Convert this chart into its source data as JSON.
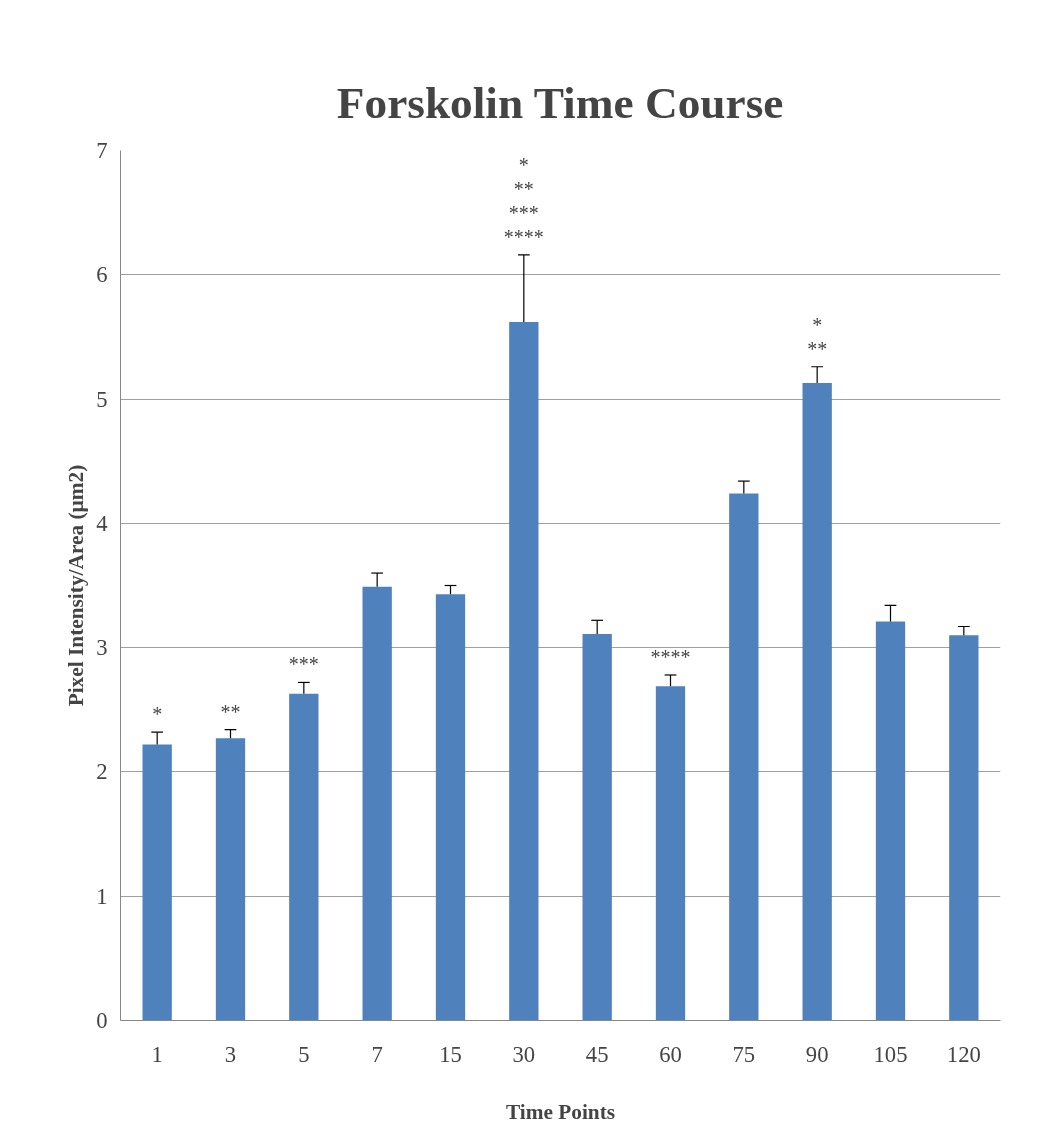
{
  "chart_data": {
    "type": "bar",
    "title": "Forskolin Time Course",
    "xlabel": "Time Points",
    "ylabel": "Pixel Intensity/Area (µm2)",
    "categories": [
      "1",
      "3",
      "5",
      "7",
      "15",
      "30",
      "45",
      "60",
      "75",
      "90",
      "105",
      "120"
    ],
    "values": [
      2.22,
      2.27,
      2.63,
      3.49,
      3.43,
      5.62,
      3.11,
      2.69,
      4.24,
      5.13,
      3.21,
      3.1
    ],
    "errors": [
      [
        2.22,
        2.32
      ],
      [
        2.27,
        2.34
      ],
      [
        2.63,
        2.72
      ],
      [
        3.49,
        3.6
      ],
      [
        3.43,
        3.5
      ],
      [
        5.62,
        6.16
      ],
      [
        3.11,
        3.22
      ],
      [
        2.69,
        2.78
      ],
      [
        4.24,
        4.34
      ],
      [
        5.13,
        5.26
      ],
      [
        3.21,
        3.34
      ],
      [
        3.1,
        3.17
      ]
    ],
    "color": "#4f81bd",
    "ylim": [
      0,
      7
    ],
    "yticks": [
      0,
      1,
      2,
      3,
      4,
      5,
      6,
      7
    ],
    "grid": "y",
    "annotations": [
      "*",
      "**",
      "***",
      "*",
      "**",
      "***",
      "****",
      "****",
      "*",
      "**"
    ]
  }
}
